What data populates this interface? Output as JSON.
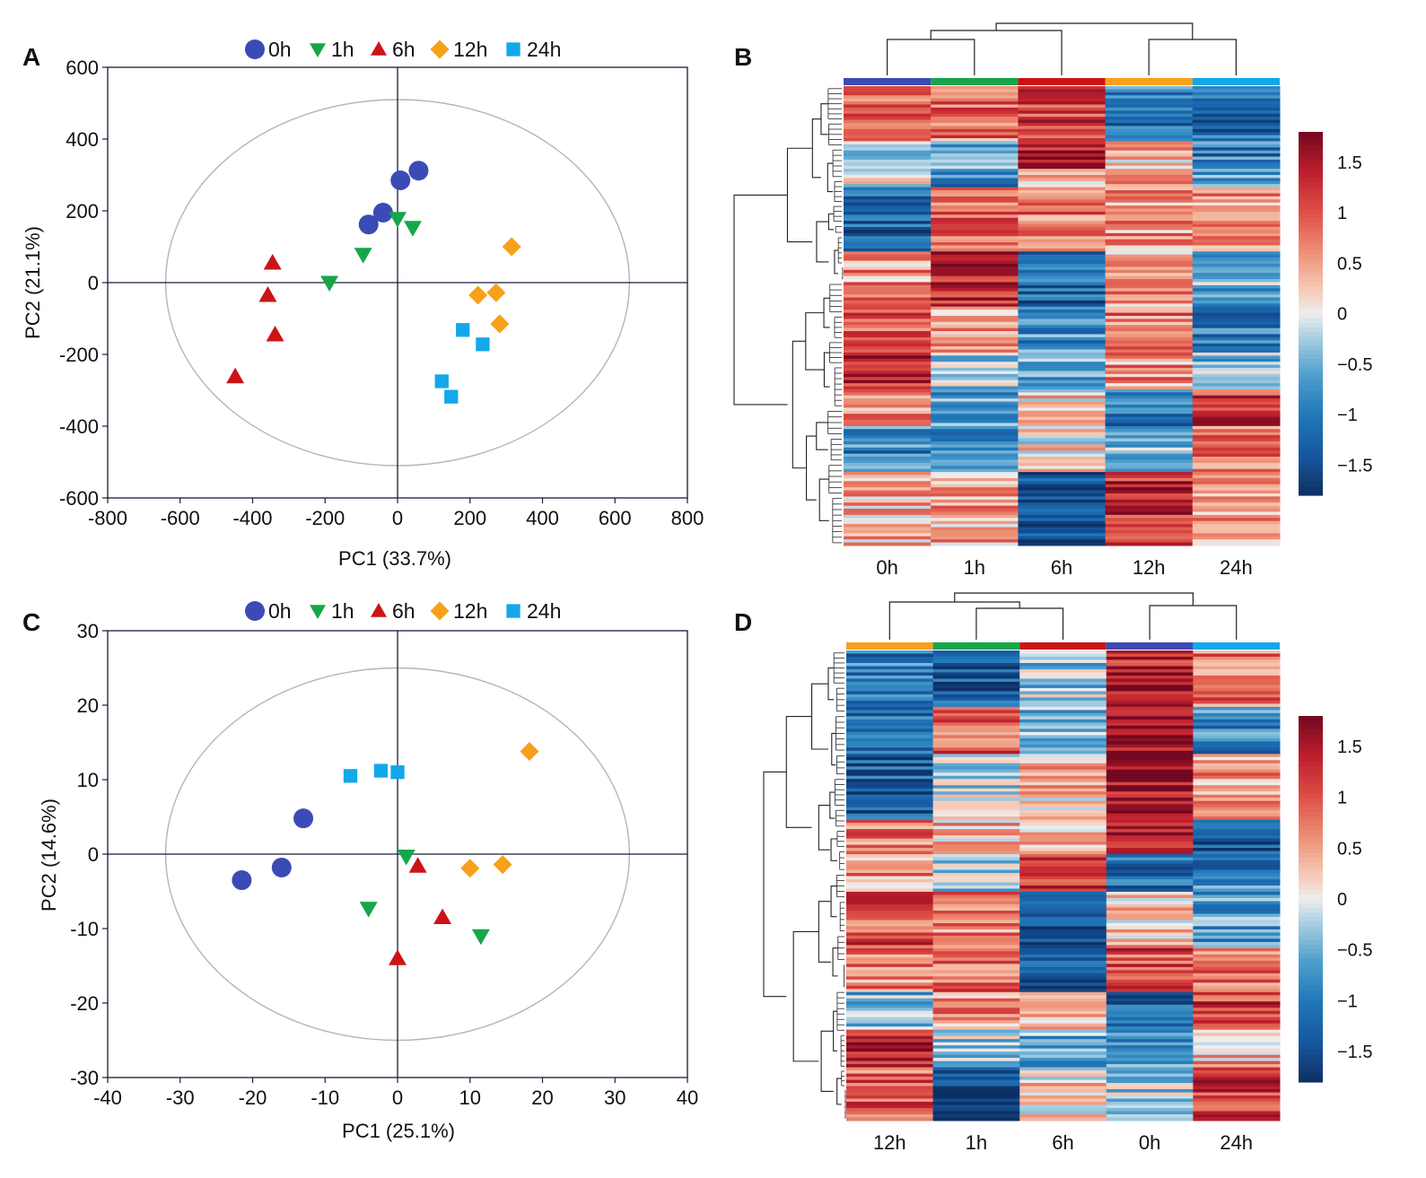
{
  "figure": {
    "marker_colors": {
      "0h": "#3a4bb5",
      "1h": "#16a64a",
      "6h": "#cc1417",
      "12h": "#f7a01a",
      "24h": "#13a8ea"
    },
    "marker_shapes": {
      "0h": "circle",
      "1h": "triangle-down",
      "6h": "triangle-up",
      "12h": "diamond",
      "24h": "square"
    },
    "legend_labels": [
      "0h",
      "1h",
      "6h",
      "12h",
      "24h"
    ]
  },
  "chart_data": [
    {
      "panel": "A",
      "type": "scatter",
      "title": "",
      "xlabel": "PC1 (33.7%)",
      "ylabel": "PC2 (21.1%)",
      "xlim": [
        -800,
        800
      ],
      "ylim": [
        -600,
        600
      ],
      "xticks": [
        -800,
        -600,
        -400,
        -200,
        0,
        200,
        400,
        600,
        800
      ],
      "yticks": [
        -600,
        -400,
        -200,
        0,
        200,
        400,
        600
      ],
      "ellipse": {
        "cx": 0,
        "cy": 0,
        "rx": 640,
        "ry": 510
      },
      "series": [
        {
          "name": "0h",
          "points": [
            [
              8,
              285
            ],
            [
              58,
              312
            ],
            [
              -40,
              195
            ],
            [
              -80,
              162
            ]
          ]
        },
        {
          "name": "1h",
          "points": [
            [
              0,
              178
            ],
            [
              42,
              153
            ],
            [
              -95,
              78
            ],
            [
              -188,
              0
            ]
          ]
        },
        {
          "name": "6h",
          "points": [
            [
              -345,
              55
            ],
            [
              -358,
              -35
            ],
            [
              -338,
              -145
            ],
            [
              -448,
              -262
            ]
          ]
        },
        {
          "name": "12h",
          "points": [
            [
              315,
              100
            ],
            [
              272,
              -28
            ],
            [
              222,
              -35
            ],
            [
              282,
              -115
            ]
          ]
        },
        {
          "name": "24h",
          "points": [
            [
              180,
              -132
            ],
            [
              235,
              -172
            ],
            [
              122,
              -275
            ],
            [
              148,
              -318
            ]
          ]
        }
      ]
    },
    {
      "panel": "B",
      "type": "heatmap",
      "columns": [
        "0h",
        "1h",
        "6h",
        "12h",
        "24h"
      ],
      "colorbar_ticks": [
        "1.5",
        "1",
        "0.5",
        "0",
        "−0.5",
        "−1",
        "−1.5"
      ],
      "colorbar_values": [
        1.5,
        1,
        0.5,
        0,
        -0.5,
        -1,
        -1.5
      ],
      "colorbar_range": [
        -1.8,
        1.8
      ],
      "blocks": [
        {
          "rows": 0.12,
          "values": [
            0.9,
            0.8,
            1.1,
            -1.0,
            -1.1
          ]
        },
        {
          "rows": 0.06,
          "values": [
            -0.3,
            -0.6,
            1.5,
            0.4,
            -1.0
          ]
        },
        {
          "rows": 0.04,
          "values": [
            0.0,
            -1.0,
            0.5,
            0.8,
            -0.6
          ]
        },
        {
          "rows": 0.14,
          "values": [
            -1.3,
            0.8,
            0.8,
            0.6,
            0.5
          ]
        },
        {
          "rows": 0.12,
          "values": [
            0.6,
            1.4,
            -1.2,
            0.5,
            -0.5
          ]
        },
        {
          "rows": 0.1,
          "values": [
            1.0,
            0.5,
            -0.8,
            0.8,
            -1.0
          ]
        },
        {
          "rows": 0.08,
          "values": [
            1.4,
            -0.3,
            -0.5,
            0.6,
            -0.4
          ]
        },
        {
          "rows": 0.08,
          "values": [
            0.7,
            -0.6,
            0.2,
            -1.0,
            1.2
          ]
        },
        {
          "rows": 0.1,
          "values": [
            -0.9,
            -1.0,
            0.1,
            -0.5,
            0.7
          ]
        },
        {
          "rows": 0.16,
          "values": [
            0.4,
            0.5,
            -1.5,
            1.3,
            0.6
          ]
        }
      ]
    },
    {
      "panel": "C",
      "type": "scatter",
      "title": "",
      "xlabel": "PC1 (25.1%)",
      "ylabel": "PC2 (14.6%)",
      "xlim": [
        -40,
        40
      ],
      "ylim": [
        -30,
        30
      ],
      "xticks": [
        -40,
        -30,
        -20,
        -10,
        0,
        10,
        20,
        30,
        40
      ],
      "yticks": [
        -30,
        -20,
        -10,
        0,
        10,
        20,
        30
      ],
      "ellipse": {
        "cx": 0,
        "cy": 0,
        "rx": 32,
        "ry": 25
      },
      "series": [
        {
          "name": "0h",
          "points": [
            [
              -13,
              4.8
            ],
            [
              -16,
              -1.8
            ],
            [
              -21.5,
              -3.5
            ]
          ]
        },
        {
          "name": "1h",
          "points": [
            [
              1.2,
              -0.3
            ],
            [
              -4,
              -7.3
            ],
            [
              11.5,
              -11
            ]
          ]
        },
        {
          "name": "6h",
          "points": [
            [
              2.8,
              -1.6
            ],
            [
              6.2,
              -8.5
            ],
            [
              0,
              -14
            ]
          ]
        },
        {
          "name": "12h",
          "points": [
            [
              18.2,
              13.8
            ],
            [
              10,
              -1.9
            ],
            [
              14.5,
              -1.4
            ]
          ]
        },
        {
          "name": "24h",
          "points": [
            [
              -6.5,
              10.5
            ],
            [
              -2.3,
              11.2
            ],
            [
              0,
              11
            ]
          ]
        }
      ]
    },
    {
      "panel": "D",
      "type": "heatmap",
      "columns": [
        "12h",
        "1h",
        "6h",
        "0h",
        "24h"
      ],
      "colorbar_ticks": [
        "1.5",
        "1",
        "0.5",
        "0",
        "−0.5",
        "−1",
        "−1.5"
      ],
      "colorbar_values": [
        1.5,
        1,
        0.5,
        0,
        -0.5,
        -1,
        -1.5
      ],
      "colorbar_range": [
        -1.8,
        1.8
      ],
      "blocks": [
        {
          "rows": 0.12,
          "values": [
            -1.0,
            -1.3,
            -0.3,
            1.4,
            0.8
          ]
        },
        {
          "rows": 0.1,
          "values": [
            -1.1,
            0.9,
            -0.4,
            1.5,
            -0.9
          ]
        },
        {
          "rows": 0.14,
          "values": [
            -1.3,
            -0.2,
            0.3,
            1.6,
            0.5
          ]
        },
        {
          "rows": 0.07,
          "values": [
            0.7,
            0.4,
            0.3,
            1.2,
            -1.4
          ]
        },
        {
          "rows": 0.08,
          "values": [
            0.6,
            -0.2,
            1.3,
            -1.1,
            -0.9
          ]
        },
        {
          "rows": 0.12,
          "values": [
            1.0,
            0.7,
            -1.4,
            0.3,
            -0.7
          ]
        },
        {
          "rows": 0.09,
          "values": [
            0.7,
            0.9,
            -1.3,
            1.0,
            0.7
          ]
        },
        {
          "rows": 0.08,
          "values": [
            -0.4,
            0.6,
            0.5,
            -1.2,
            1.1
          ]
        },
        {
          "rows": 0.08,
          "values": [
            1.5,
            -0.3,
            -0.5,
            -0.8,
            0.4
          ]
        },
        {
          "rows": 0.12,
          "values": [
            0.9,
            -1.5,
            0.2,
            -0.2,
            1.2
          ]
        }
      ]
    }
  ]
}
